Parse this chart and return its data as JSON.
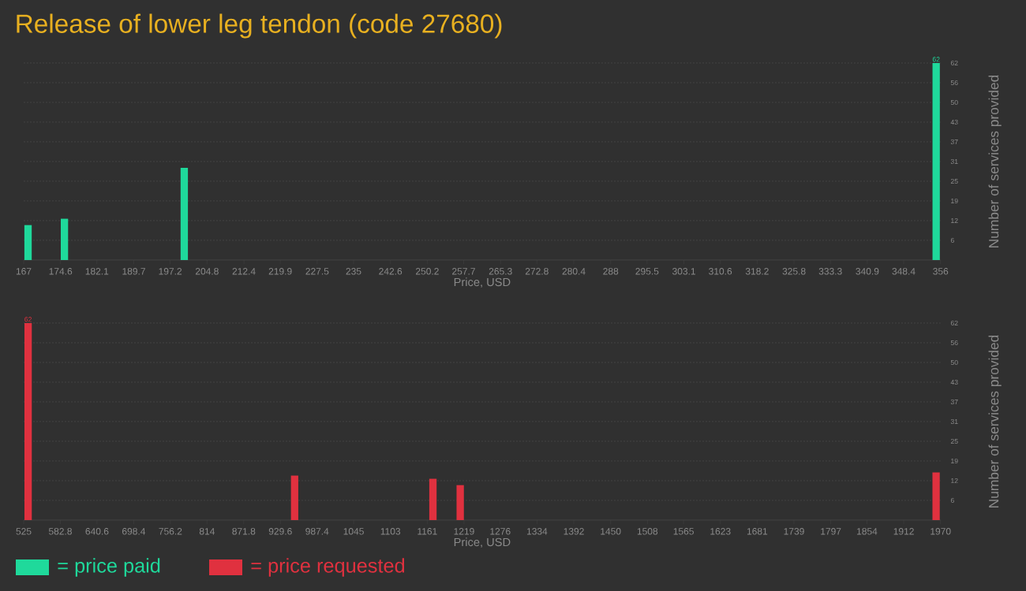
{
  "chart_data": [
    {
      "type": "bar",
      "title": "Release of lower leg tendon (code 27680)",
      "xlabel": "Price, USD",
      "ylabel": "Number of services provided",
      "x": [
        167.9,
        175.4,
        200.1,
        355.1
      ],
      "series": [
        {
          "name": "= price paid",
          "color": "#1fd99b",
          "values": [
            11,
            13,
            29,
            62
          ],
          "value_labels": [
            null,
            null,
            null,
            "62"
          ]
        }
      ],
      "xlim": [
        167,
        356
      ],
      "xticks": [
        167,
        174.6,
        182.1,
        189.7,
        197.2,
        204.8,
        212.4,
        219.9,
        227.5,
        235,
        242.6,
        250.2,
        257.7,
        265.3,
        272.8,
        280.4,
        288,
        295.5,
        303.1,
        310.6,
        318.2,
        325.8,
        333.3,
        340.9,
        348.4,
        356
      ],
      "ylim": [
        0,
        62
      ],
      "yticks": [
        {
          "value": 6.2,
          "label": "6"
        },
        {
          "value": 12.4,
          "label": "12"
        },
        {
          "value": 18.6,
          "label": "19"
        },
        {
          "value": 24.8,
          "label": "25"
        },
        {
          "value": 31,
          "label": "31"
        },
        {
          "value": 37.2,
          "label": "37"
        },
        {
          "value": 43.4,
          "label": "43"
        },
        {
          "value": 49.6,
          "label": "50"
        },
        {
          "value": 55.8,
          "label": "56"
        },
        {
          "value": 62,
          "label": "62"
        }
      ],
      "grid": "y",
      "legend": "bottom"
    },
    {
      "type": "bar",
      "xlabel": "Price, USD",
      "ylabel": "Number of services provided",
      "x": [
        532,
        952,
        1170,
        1213,
        1963
      ],
      "series": [
        {
          "name": "= price requested",
          "color": "#e0313f",
          "values": [
            62,
            14,
            13,
            11,
            15
          ],
          "value_labels": [
            "62",
            null,
            null,
            null,
            null
          ]
        }
      ],
      "xlim": [
        525,
        1970
      ],
      "xticks": [
        525,
        582.8,
        640.6,
        698.4,
        756.2,
        814,
        871.8,
        929.6,
        987.4,
        1045,
        1103,
        1161,
        1219,
        1276,
        1334,
        1392,
        1450,
        1508,
        1565,
        1623,
        1681,
        1739,
        1797,
        1854,
        1912,
        1970
      ],
      "ylim": [
        0,
        62
      ],
      "yticks": [
        {
          "value": 6.2,
          "label": "6"
        },
        {
          "value": 12.4,
          "label": "12"
        },
        {
          "value": 18.6,
          "label": "19"
        },
        {
          "value": 24.8,
          "label": "25"
        },
        {
          "value": 31,
          "label": "31"
        },
        {
          "value": 37.2,
          "label": "37"
        },
        {
          "value": 43.4,
          "label": "43"
        },
        {
          "value": 49.6,
          "label": "50"
        },
        {
          "value": 55.8,
          "label": "56"
        },
        {
          "value": 62,
          "label": "62"
        }
      ],
      "grid": "y",
      "legend": "bottom"
    }
  ]
}
